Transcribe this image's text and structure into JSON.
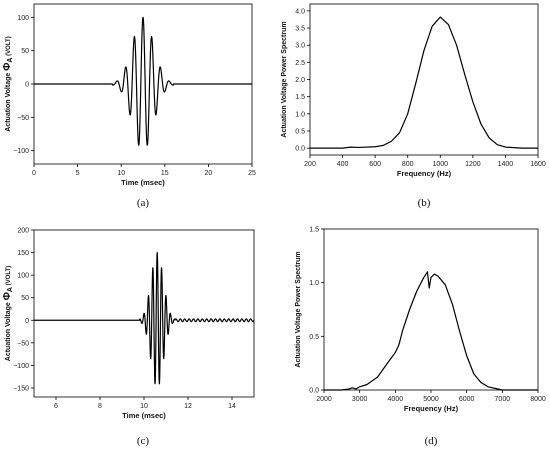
{
  "chart_data": [
    {
      "id": "a",
      "type": "line",
      "caption": "(a)",
      "xlabel": "Time (msec)",
      "ylabel_main": "Actuation Voltage",
      "ylabel_symbol": "Φ",
      "ylabel_sub": "A",
      "ylabel_unit": "(VOLT)",
      "xlim": [
        0,
        25
      ],
      "ylim": [
        -120,
        120
      ],
      "xticks": [
        0,
        5,
        10,
        15,
        20,
        25
      ],
      "yticks": [
        -100,
        -50,
        0,
        50,
        100
      ],
      "signal": {
        "kind": "burst",
        "center": 12.5,
        "freq": 1.0,
        "sigma": 1.2,
        "amplitude": 100,
        "t_start": 9.0,
        "t_end": 16.0
      }
    },
    {
      "id": "b",
      "type": "line",
      "caption": "(b)",
      "xlabel": "Frequency (Hz)",
      "ylabel": "Actuation Voltage Power Spectrum",
      "xlim": [
        200,
        1600
      ],
      "ylim": [
        -0.2,
        4.2
      ],
      "xticks": [
        200,
        400,
        600,
        800,
        1000,
        1200,
        1400,
        1600
      ],
      "yticks": [
        0.0,
        0.5,
        1.0,
        1.5,
        2.0,
        2.5,
        3.0,
        3.5,
        4.0
      ],
      "ytick_decimals": 1,
      "x": [
        200,
        300,
        400,
        450,
        500,
        600,
        650,
        700,
        750,
        800,
        850,
        900,
        950,
        1000,
        1050,
        1100,
        1150,
        1200,
        1250,
        1300,
        1350,
        1400,
        1500,
        1600
      ],
      "y": [
        0.0,
        0.0,
        0.0,
        0.03,
        0.02,
        0.04,
        0.08,
        0.2,
        0.45,
        1.0,
        1.9,
        2.85,
        3.55,
        3.82,
        3.6,
        3.0,
        2.15,
        1.35,
        0.7,
        0.3,
        0.1,
        0.03,
        0.0,
        0.0
      ]
    },
    {
      "id": "c",
      "type": "line",
      "caption": "(c)",
      "xlabel": "Time (msec)",
      "ylabel_main": "Actuation Voltage",
      "ylabel_symbol": "Φ",
      "ylabel_sub": "A",
      "ylabel_unit": "(VOLT)",
      "xlim": [
        5,
        15
      ],
      "ylim": [
        -170,
        200
      ],
      "xticks": [
        6,
        8,
        10,
        12,
        14
      ],
      "yticks": [
        -150,
        -100,
        -50,
        0,
        50,
        100,
        150,
        200
      ],
      "signal": {
        "kind": "burst",
        "center": 10.6,
        "freq": 5.0,
        "sigma": 0.28,
        "amplitude": 150,
        "t_start": 9.8,
        "t_end": 11.4,
        "ripple_amplitude": 3,
        "ripple_freq": 5.0,
        "ripple_end": 15.0
      }
    },
    {
      "id": "d",
      "type": "line",
      "caption": "(d)",
      "xlabel": "Frequency (Hz)",
      "ylabel": "Actuation Voltage Power Spectrum",
      "xlim": [
        2000,
        8000
      ],
      "ylim": [
        0.0,
        1.5
      ],
      "xticks": [
        2000,
        3000,
        4000,
        5000,
        6000,
        7000,
        8000
      ],
      "yticks": [
        0.0,
        0.5,
        1.0,
        1.5
      ],
      "ytick_decimals": 1,
      "x": [
        2000,
        2500,
        2700,
        2800,
        2900,
        3000,
        3200,
        3500,
        3800,
        4000,
        4100,
        4200,
        4400,
        4600,
        4800,
        4900,
        4950,
        5000,
        5100,
        5200,
        5400,
        5600,
        5800,
        6000,
        6200,
        6400,
        6600,
        7000,
        8000
      ],
      "y": [
        0.0,
        0.0,
        0.01,
        0.02,
        0.01,
        0.03,
        0.05,
        0.12,
        0.26,
        0.35,
        0.42,
        0.55,
        0.75,
        0.92,
        1.05,
        1.1,
        0.95,
        1.05,
        1.08,
        1.06,
        0.98,
        0.8,
        0.55,
        0.32,
        0.15,
        0.07,
        0.03,
        0.0,
        0.0
      ]
    }
  ]
}
